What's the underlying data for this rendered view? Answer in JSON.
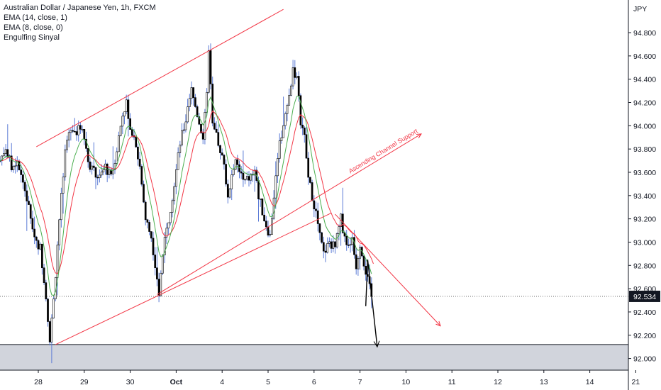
{
  "legend": {
    "title": "Australian Dollar / Japanese Yen, 1h, FXCM",
    "ema1": "EMA (14, close, 1)",
    "ema2": "EMA (8, close, 0)",
    "indicator": "Engulfing Sinyal"
  },
  "chart_data": {
    "type": "candlestick",
    "currency_label": "JPY",
    "last_price_label": "92.534",
    "last_price": 92.534,
    "ylim": [
      91.9,
      95.05
    ],
    "y_ticks": [
      92.0,
      92.2,
      92.4,
      92.6,
      92.8,
      93.0,
      93.2,
      93.4,
      93.6,
      93.8,
      94.0,
      94.2,
      94.4,
      94.6,
      94.8
    ],
    "y_tick_labels": [
      "92.000",
      "92.200",
      "92.400",
      "92.600",
      "92.800",
      "93.000",
      "93.200",
      "93.400",
      "93.600",
      "93.800",
      "94.000",
      "94.200",
      "94.400",
      "94.600",
      "94.800"
    ],
    "x_ticks": [
      {
        "label": "28",
        "t": 0
      },
      {
        "label": "29",
        "t": 24
      },
      {
        "label": "30",
        "t": 48
      },
      {
        "label": "Oct",
        "t": 72
      },
      {
        "label": "4",
        "t": 96
      },
      {
        "label": "5",
        "t": 120
      },
      {
        "label": "6",
        "t": 144
      },
      {
        "label": "7",
        "t": 168
      },
      {
        "label": "10",
        "t": 192
      },
      {
        "label": "11",
        "t": 216
      },
      {
        "label": "12",
        "t": 240
      },
      {
        "label": "13",
        "t": 264
      },
      {
        "label": "14",
        "t": 288
      },
      {
        "label": "21",
        "t": 312
      }
    ],
    "price_path": [
      [
        -20,
        93.7
      ],
      [
        -17,
        93.82
      ],
      [
        -14,
        93.64
      ],
      [
        -11,
        93.72
      ],
      [
        -8,
        93.52
      ],
      [
        -5,
        93.3
      ],
      [
        -2,
        93.05
      ],
      [
        1,
        92.95
      ],
      [
        4,
        92.55
      ],
      [
        6,
        92.15
      ],
      [
        8,
        92.5
      ],
      [
        11,
        93.2
      ],
      [
        14,
        93.75
      ],
      [
        17,
        94.0
      ],
      [
        20,
        93.95
      ],
      [
        23,
        94.0
      ],
      [
        26,
        93.7
      ],
      [
        29,
        93.6
      ],
      [
        32,
        93.55
      ],
      [
        35,
        93.65
      ],
      [
        38,
        93.55
      ],
      [
        41,
        93.8
      ],
      [
        44,
        94.1
      ],
      [
        46,
        94.2
      ],
      [
        48,
        94.0
      ],
      [
        51,
        93.85
      ],
      [
        53,
        93.65
      ],
      [
        56,
        93.2
      ],
      [
        59,
        93.05
      ],
      [
        62,
        92.7
      ],
      [
        63,
        92.55
      ],
      [
        65,
        92.9
      ],
      [
        68,
        93.2
      ],
      [
        71,
        93.5
      ],
      [
        74,
        93.85
      ],
      [
        77,
        94.05
      ],
      [
        80,
        94.3
      ],
      [
        83,
        94.1
      ],
      [
        86,
        93.9
      ],
      [
        88,
        94.25
      ],
      [
        89,
        94.68
      ],
      [
        91,
        94.0
      ],
      [
        94,
        93.85
      ],
      [
        97,
        93.7
      ],
      [
        99,
        93.35
      ],
      [
        101,
        93.6
      ],
      [
        104,
        93.7
      ],
      [
        107,
        93.5
      ],
      [
        110,
        93.55
      ],
      [
        113,
        93.6
      ],
      [
        115,
        93.4
      ],
      [
        118,
        93.2
      ],
      [
        121,
        93.05
      ],
      [
        123,
        93.4
      ],
      [
        126,
        93.85
      ],
      [
        129,
        94.1
      ],
      [
        131,
        94.25
      ],
      [
        133,
        94.5
      ],
      [
        135,
        94.4
      ],
      [
        137,
        94.05
      ],
      [
        139,
        93.9
      ],
      [
        141,
        93.55
      ],
      [
        143,
        93.4
      ],
      [
        145,
        93.25
      ],
      [
        147,
        93.05
      ],
      [
        149,
        92.9
      ],
      [
        152,
        93.0
      ],
      [
        155,
        92.95
      ],
      [
        158,
        93.2
      ],
      [
        160,
        93.05
      ],
      [
        162,
        92.95
      ],
      [
        164,
        93.05
      ],
      [
        166,
        92.8
      ],
      [
        168,
        93.0
      ],
      [
        171,
        92.75
      ],
      [
        173,
        92.6
      ],
      [
        174,
        92.45
      ]
    ],
    "ema_fast_label": "EMA (8, close, 0)",
    "ema_slow_label": "EMA (14, close, 1)",
    "ema_fast_color": "#4caf50",
    "ema_slow_color": "#f23645",
    "channel": {
      "upper": [
        [
          -1,
          93.82
        ],
        [
          128,
          95.0
        ]
      ],
      "lower": [
        [
          9,
          92.12
        ],
        [
          153,
          93.25
        ]
      ],
      "support_ray": [
        [
          62,
          92.55
        ],
        [
          200,
          93.93
        ]
      ],
      "label": "Ascending Channel Support",
      "color": "#f23645"
    },
    "downtrend_line": [
      [
        155,
        93.24
      ],
      [
        210,
        92.28
      ]
    ],
    "projection_arrow": [
      [
        171,
        92.45
      ],
      [
        172,
        92.85
      ],
      [
        177,
        92.1
      ]
    ],
    "support_zone": [
      91.9,
      92.12
    ],
    "colors": {
      "up_candle": "#ffffff",
      "down_candle": "#000000",
      "wick": "#5b7bd6",
      "zone": "#d1d4dc"
    }
  }
}
